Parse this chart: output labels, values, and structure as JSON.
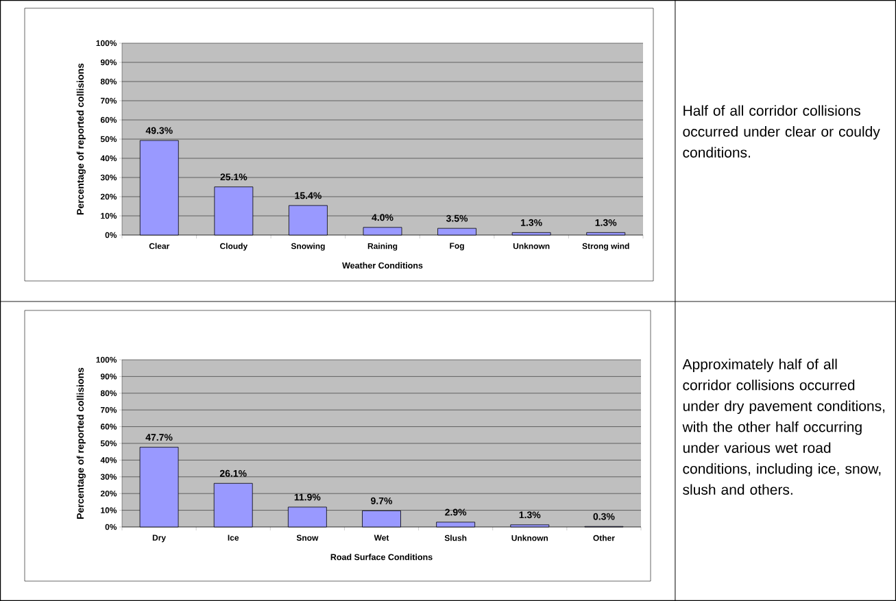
{
  "chart_data": [
    {
      "type": "bar",
      "xlabel": "Weather Conditions",
      "ylabel": "Percentage of reported collisions",
      "categories": [
        "Clear",
        "Cloudy",
        "Snowing",
        "Raining",
        "Fog",
        "Unknown",
        "Strong wind"
      ],
      "values": [
        49.3,
        25.1,
        15.4,
        4.0,
        3.5,
        1.3,
        1.3
      ],
      "value_labels": [
        "49.3%",
        "25.1%",
        "15.4%",
        "4.0%",
        "3.5%",
        "1.3%",
        "1.3%"
      ],
      "color": "#9999ff",
      "grid": "y",
      "ylim": [
        0,
        100
      ],
      "yticks": [
        {
          "value": 0,
          "label": "0%"
        },
        {
          "value": 10,
          "label": "10%"
        },
        {
          "value": 20,
          "label": "20%"
        },
        {
          "value": 30,
          "label": "30%"
        },
        {
          "value": 40,
          "label": "40%"
        },
        {
          "value": 50,
          "label": "50%"
        },
        {
          "value": 60,
          "label": "60%"
        },
        {
          "value": 70,
          "label": "70%"
        },
        {
          "value": 80,
          "label": "80%"
        },
        {
          "value": 90,
          "label": "90%"
        },
        {
          "value": 100,
          "label": "100%"
        }
      ],
      "annotations": [
        "Half of all corridor collisions occurred under clear or couldy conditions."
      ]
    },
    {
      "type": "bar",
      "xlabel": "Road Surface Conditions",
      "ylabel": "Percentage of reported collisions",
      "categories": [
        "Dry",
        "Ice",
        "Snow",
        "Wet",
        "Slush",
        "Unknown",
        "Other"
      ],
      "values": [
        47.7,
        26.1,
        11.9,
        9.7,
        2.9,
        1.3,
        0.3
      ],
      "value_labels": [
        "47.7%",
        "26.1%",
        "11.9%",
        "9.7%",
        "2.9%",
        "1.3%",
        "0.3%"
      ],
      "color": "#9999ff",
      "grid": "y",
      "ylim": [
        0,
        100
      ],
      "yticks": [
        {
          "value": 0,
          "label": "0%"
        },
        {
          "value": 10,
          "label": "10%"
        },
        {
          "value": 20,
          "label": "20%"
        },
        {
          "value": 30,
          "label": "30%"
        },
        {
          "value": 40,
          "label": "40%"
        },
        {
          "value": 50,
          "label": "50%"
        },
        {
          "value": 60,
          "label": "60%"
        },
        {
          "value": 70,
          "label": "70%"
        },
        {
          "value": 80,
          "label": "80%"
        },
        {
          "value": 90,
          "label": "90%"
        },
        {
          "value": 100,
          "label": "100%"
        }
      ],
      "annotations": [
        "Approximately half of all corridor collisions occurred under dry pavement conditions, with the other half occurring under various wet road conditions, including ice, snow, slush and others."
      ]
    }
  ]
}
